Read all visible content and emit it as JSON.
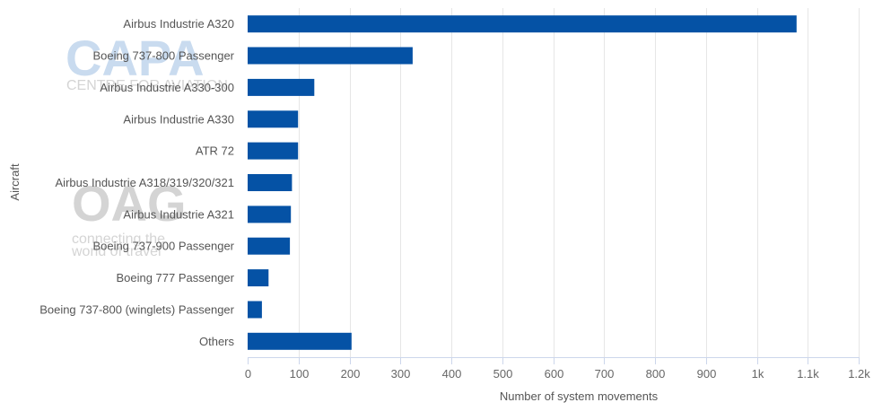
{
  "chart_data": {
    "type": "bar",
    "orientation": "horizontal",
    "categories": [
      "Airbus Industrie A320",
      "Boeing 737-800 Passenger",
      "Airbus Industrie A330-300",
      "Airbus Industrie A330",
      "ATR 72",
      "Airbus Industrie A318/319/320/321",
      "Airbus Industrie A321",
      "Boeing 737-900 Passenger",
      "Boeing 777 Passenger",
      "Boeing 737-800 (winglets) Passenger",
      "Others"
    ],
    "values": [
      1078,
      324,
      131,
      99,
      99,
      87,
      85,
      83,
      41,
      28,
      204
    ],
    "xlabel": "Number of system movements",
    "ylabel": "Aircraft",
    "xlim": [
      0,
      1200
    ],
    "xticks": [
      0,
      100,
      200,
      300,
      400,
      500,
      600,
      700,
      800,
      900,
      1000,
      1100,
      1200
    ],
    "xtick_labels": [
      "0",
      "100",
      "200",
      "300",
      "400",
      "500",
      "600",
      "700",
      "800",
      "900",
      "1k",
      "1.1k",
      "1.2k"
    ],
    "grid": "vertical",
    "legend": "none",
    "colors": {
      "bar": "#0552a5",
      "grid": "#e6e6e6",
      "axis": "#ccd6eb",
      "watermark": "#c9dbef",
      "watermark_grey": "#d4d4d4"
    }
  },
  "watermarks": {
    "capa_title": "CAPA",
    "capa_subtitle": "CENTRE FOR AVIATION",
    "oag_title": "OAG",
    "oag_line1": "connecting the",
    "oag_line2": "world of travel"
  }
}
